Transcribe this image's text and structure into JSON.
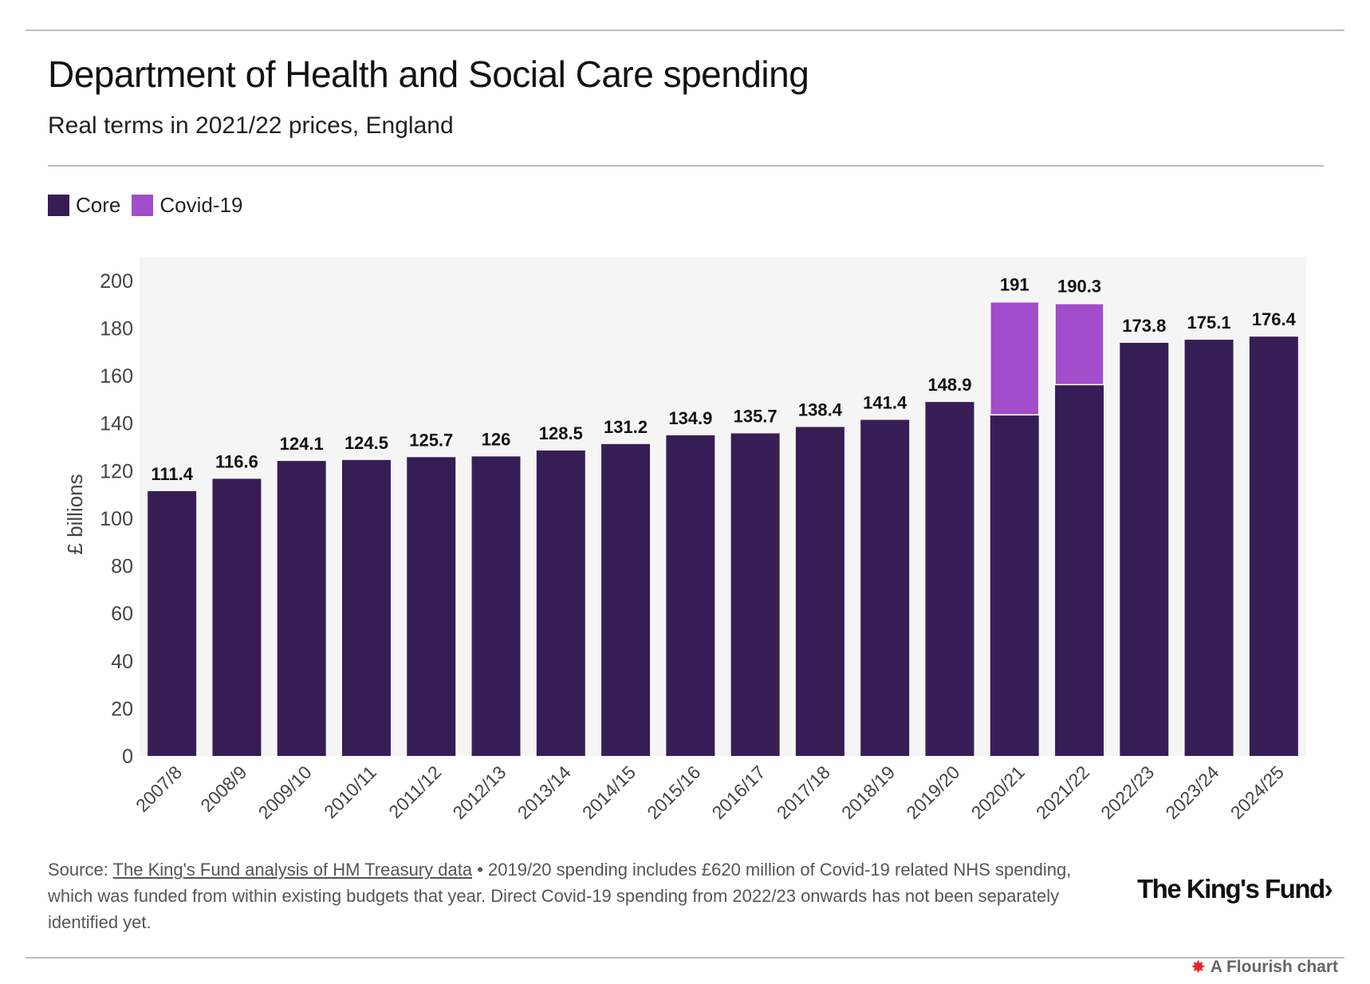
{
  "title": "Department of Health and Social Care spending",
  "subtitle": "Real terms in 2021/22 prices, England",
  "legend": [
    {
      "label": "Core",
      "color": "#371d55"
    },
    {
      "label": "Covid-19",
      "color": "#a24dcb"
    }
  ],
  "footer": {
    "source_prefix": "Source: ",
    "source_link": "The King's Fund analysis of HM Treasury data",
    "note": " • 2019/20 spending includes £620 million of Covid-19 related NHS spending, which was funded from within existing budgets that year. Direct Covid-19 spending from 2022/23 onwards has not been separately identified yet."
  },
  "logo": "The King's Fund›",
  "flourish": "A Flourish chart",
  "chart_data": {
    "type": "bar",
    "stacked": true,
    "categories": [
      "2007/8",
      "2008/9",
      "2009/10",
      "2010/11",
      "2011/12",
      "2012/13",
      "2013/14",
      "2014/15",
      "2015/16",
      "2016/17",
      "2017/18",
      "2018/19",
      "2019/20",
      "2020/21",
      "2021/22",
      "2022/23",
      "2023/24",
      "2024/25"
    ],
    "series": [
      {
        "name": "Core",
        "color": "#371d55",
        "values": [
          111.4,
          116.6,
          124.1,
          124.5,
          125.7,
          126,
          128.5,
          131.2,
          134.9,
          135.7,
          138.4,
          141.4,
          148.9,
          143.5,
          156.2,
          173.8,
          175.1,
          176.4
        ]
      },
      {
        "name": "Covid-19",
        "color": "#a24dcb",
        "values": [
          0,
          0,
          0,
          0,
          0,
          0,
          0,
          0,
          0,
          0,
          0,
          0,
          0,
          47.5,
          34.1,
          0,
          0,
          0
        ]
      }
    ],
    "totals": [
      111.4,
      116.6,
      124.1,
      124.5,
      125.7,
      126,
      128.5,
      131.2,
      134.9,
      135.7,
      138.4,
      141.4,
      148.9,
      191,
      190.3,
      173.8,
      175.1,
      176.4
    ],
    "total_labels": [
      "111.4",
      "116.6",
      "124.1",
      "124.5",
      "125.7",
      "126",
      "128.5",
      "131.2",
      "134.9",
      "135.7",
      "138.4",
      "141.4",
      "148.9",
      "191",
      "190.3",
      "173.8",
      "175.1",
      "176.4"
    ],
    "ylabel": "£ billions",
    "ylim": [
      0,
      210
    ],
    "yticks": [
      0,
      20,
      40,
      60,
      80,
      100,
      120,
      140,
      160,
      180,
      200
    ],
    "grid": false,
    "legend_position": "top-left",
    "plot_background": "#f5f5f5"
  }
}
